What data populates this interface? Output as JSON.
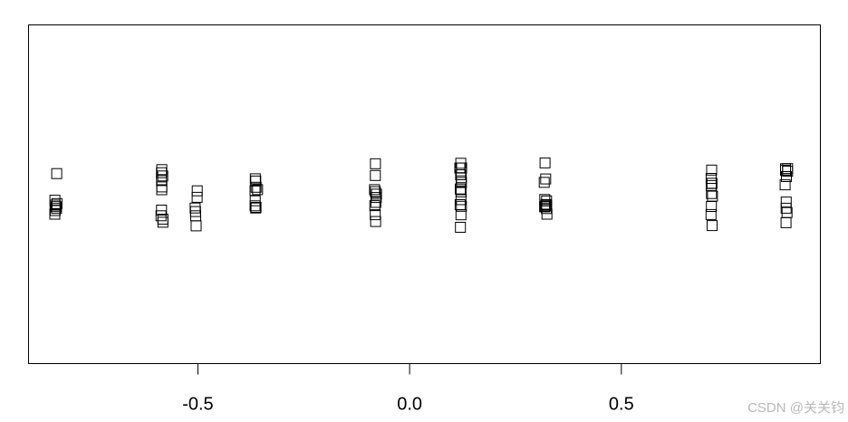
{
  "chart_data": {
    "type": "scatter",
    "title": "",
    "xlabel": "",
    "ylabel": "",
    "xlim": [
      -0.9,
      0.97
    ],
    "ylim": [
      0,
      1
    ],
    "x_ticks": [
      -0.5,
      0.0,
      0.5
    ],
    "x_tick_labels": [
      "-0.5",
      "0.0",
      "0.5"
    ],
    "marker": "open-square",
    "jitter": true,
    "grid": false,
    "legend": "none",
    "clusters": [
      {
        "x": -0.836,
        "n": 8
      },
      {
        "x": -0.585,
        "n": 10
      },
      {
        "x": -0.504,
        "n": 6
      },
      {
        "x": -0.362,
        "n": 9
      },
      {
        "x": -0.081,
        "n": 10
      },
      {
        "x": 0.12,
        "n": 14
      },
      {
        "x": 0.321,
        "n": 11
      },
      {
        "x": 0.713,
        "n": 9
      },
      {
        "x": 0.89,
        "n": 10
      }
    ],
    "colors": {
      "marker_stroke": "#000000",
      "axis": "#000000",
      "background": "#ffffff"
    }
  },
  "watermark": "CSDN @关关钧"
}
